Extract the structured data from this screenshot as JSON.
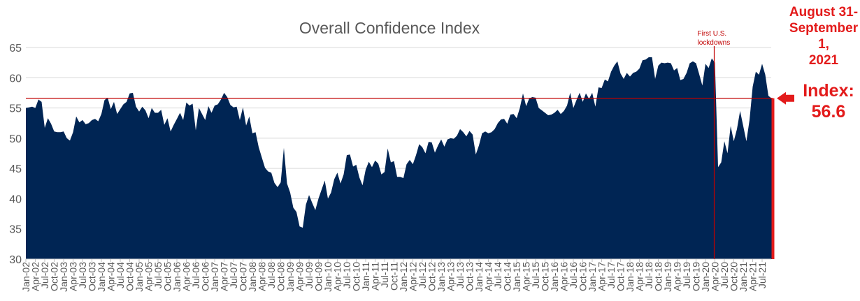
{
  "chart_data": {
    "type": "area",
    "title": "Overall Confidence Index",
    "xlabel": "",
    "ylabel": "",
    "ylim": [
      30,
      65
    ],
    "yticks": [
      30,
      35,
      40,
      45,
      50,
      55,
      60,
      65
    ],
    "grid": true,
    "start_month": "Jan-02",
    "x_tick_labels": [
      "Jan-02",
      "Apr-02",
      "Jul-02",
      "Oct-02",
      "Jan-03",
      "Apr-03",
      "Jul-03",
      "Oct-03",
      "Jan-04",
      "Apr-04",
      "Jul-04",
      "Oct-04",
      "Jan-05",
      "Apr-05",
      "Jul-05",
      "Oct-05",
      "Jan-06",
      "Apr-06",
      "Jul-06",
      "Oct-06",
      "Jan-07",
      "Apr-07",
      "Jul-07",
      "Oct-07",
      "Jan-08",
      "Apr-08",
      "Jul-08",
      "Oct-08",
      "Jan-09",
      "Apr-09",
      "Jul-09",
      "Oct-09",
      "Jan-10",
      "Apr-10",
      "Jul-10",
      "Oct-10",
      "Jan-11",
      "Apr-11",
      "Jul-11",
      "Oct-11",
      "Jan-12",
      "Apr-12",
      "Jul-12",
      "Oct-12",
      "Jan-13",
      "Apr-13",
      "Jul-13",
      "Oct-13",
      "Jan-14",
      "Apr-14",
      "Jul-14",
      "Oct-14",
      "Jan-15",
      "Apr-15",
      "Jul-15",
      "Oct-15",
      "Jan-16",
      "Apr-16",
      "Jul-16",
      "Oct-16",
      "Jan-17",
      "Apr-17",
      "Jul-17",
      "Oct-17",
      "Jan-18",
      "Apr-18",
      "Jul-18",
      "Oct-18",
      "Jan-19",
      "Apr-19",
      "Jul-19",
      "Oct-19",
      "Jan-20",
      "Apr-20",
      "Jul-20",
      "Oct-20",
      "Jan-21",
      "Apr-21",
      "Jul-21"
    ],
    "series": [
      {
        "color": "#002554",
        "values": [
          55,
          55.1,
          55.2,
          55,
          56.4,
          56,
          51.7,
          53.3,
          52.4,
          51.1,
          51,
          51,
          51.1,
          50,
          49.6,
          51,
          53.6,
          52.6,
          53,
          52.3,
          52.5,
          53,
          53.2,
          52.8,
          54,
          56.3,
          56.7,
          54.8,
          56,
          54,
          54.8,
          55.6,
          56,
          57.4,
          57.5,
          55.2,
          54.4,
          55.2,
          54.6,
          53.3,
          55,
          54.2,
          54.2,
          54.7,
          52.2,
          53.3,
          51.1,
          52.2,
          53.2,
          54.2,
          53,
          55.9,
          55.4,
          55.7,
          51.3,
          55,
          54,
          53,
          55.3,
          54.2,
          55.4,
          55.6,
          56.4,
          57.5,
          56.8,
          55.5,
          55.1,
          55.2,
          53,
          55.1,
          52.1,
          53.6,
          50.8,
          51,
          48.5,
          46.8,
          45.1,
          44.5,
          44.3,
          42.6,
          41.9,
          42.7,
          48.4,
          42.5,
          41,
          38.5,
          37.8,
          35.4,
          35.2,
          39,
          40.6,
          39.3,
          38.1,
          40,
          41.5,
          43,
          40,
          41,
          43.2,
          44.3,
          42.5,
          44,
          47.2,
          47.3,
          45.3,
          45.6,
          43.5,
          42.2,
          44.8,
          46.1,
          45.2,
          46.3,
          45.8,
          44,
          44.4,
          48.3,
          46,
          46.2,
          43.6,
          43.6,
          43.4,
          45.7,
          46.4,
          45.7,
          47.2,
          49,
          48.5,
          47.5,
          49.4,
          49.3,
          47.6,
          48.8,
          49.8,
          48.6,
          49.8,
          50,
          49.9,
          50.4,
          51.5,
          51,
          50.3,
          51.2,
          50.6,
          47.3,
          48.8,
          50.8,
          51.1,
          50.8,
          51,
          51.5,
          52.5,
          53.1,
          53.2,
          52.4,
          53.9,
          54,
          53.3,
          55,
          57.4,
          55.3,
          56.6,
          56.8,
          56.7,
          55,
          54.6,
          54.2,
          53.8,
          53.9,
          54.2,
          54.7,
          54,
          54.5,
          55.4,
          57.5,
          55,
          56.3,
          57.5,
          56,
          57.4,
          56.5,
          57.5,
          55.2,
          58.4,
          58.3,
          59.7,
          59.4,
          61,
          62,
          62.7,
          60.7,
          59.8,
          60.8,
          60.2,
          60.8,
          61,
          61.5,
          62.9,
          63,
          63.4,
          63.4,
          59.8,
          62,
          62.5,
          62.4,
          62.5,
          62.4,
          61.2,
          61.6,
          59.6,
          59.8,
          60.8,
          62.4,
          62.7,
          62.4,
          60.6,
          58.7,
          62.3,
          61.6,
          63.2,
          62.5,
          45.2,
          46,
          49.5,
          47.5,
          52,
          49.5,
          51.5,
          54.5,
          52,
          49.5,
          53,
          58.5,
          61,
          60.5,
          62.3,
          60.5,
          57,
          56.6
        ]
      }
    ],
    "reference_line": {
      "value": 56.6,
      "color": "#c00000"
    },
    "event_line": {
      "month": "Apr-20",
      "label_line1": "First U.S.",
      "label_line2": "lockdowns",
      "color": "#c00000"
    },
    "callout": {
      "date_line1": "August 31-",
      "date_line2": "September 1,",
      "date_line3": "2021",
      "index_line1": "Index:",
      "index_line2": "56.6",
      "color": "#e31b1b"
    }
  }
}
